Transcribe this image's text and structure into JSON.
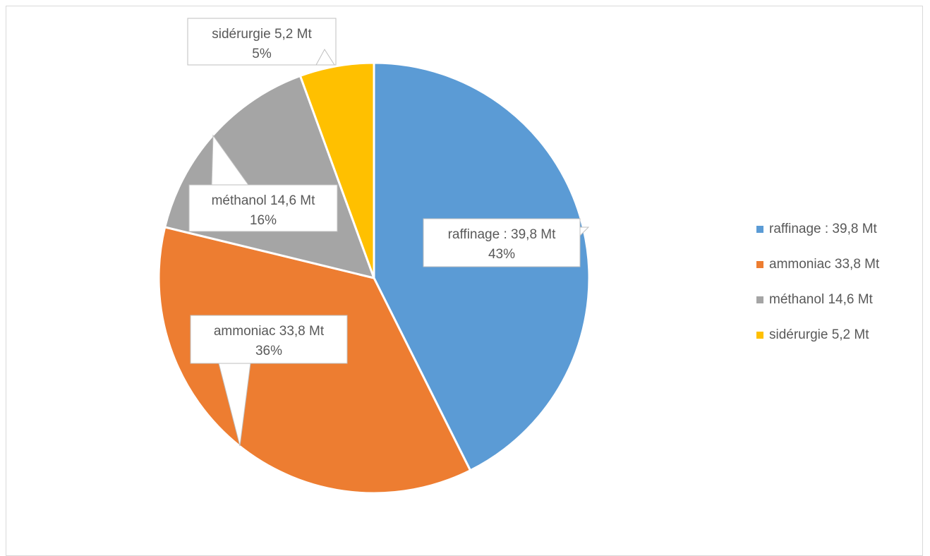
{
  "chart_data": {
    "type": "pie",
    "slices": [
      {
        "label": "raffinage : 39,8 Mt",
        "value": 39.8,
        "percent_label": "43%",
        "color": "#5B9BD5"
      },
      {
        "label": "ammoniac 33,8 Mt",
        "value": 33.8,
        "percent_label": "36%",
        "color": "#ED7D31"
      },
      {
        "label": "méthanol 14,6 Mt",
        "value": 14.6,
        "percent_label": "16%",
        "color": "#A5A5A5"
      },
      {
        "label": "sidérurgie 5,2 Mt",
        "value": 5.2,
        "percent_label": "5%",
        "color": "#FFC000"
      }
    ],
    "legend_position": "right",
    "title": ""
  }
}
